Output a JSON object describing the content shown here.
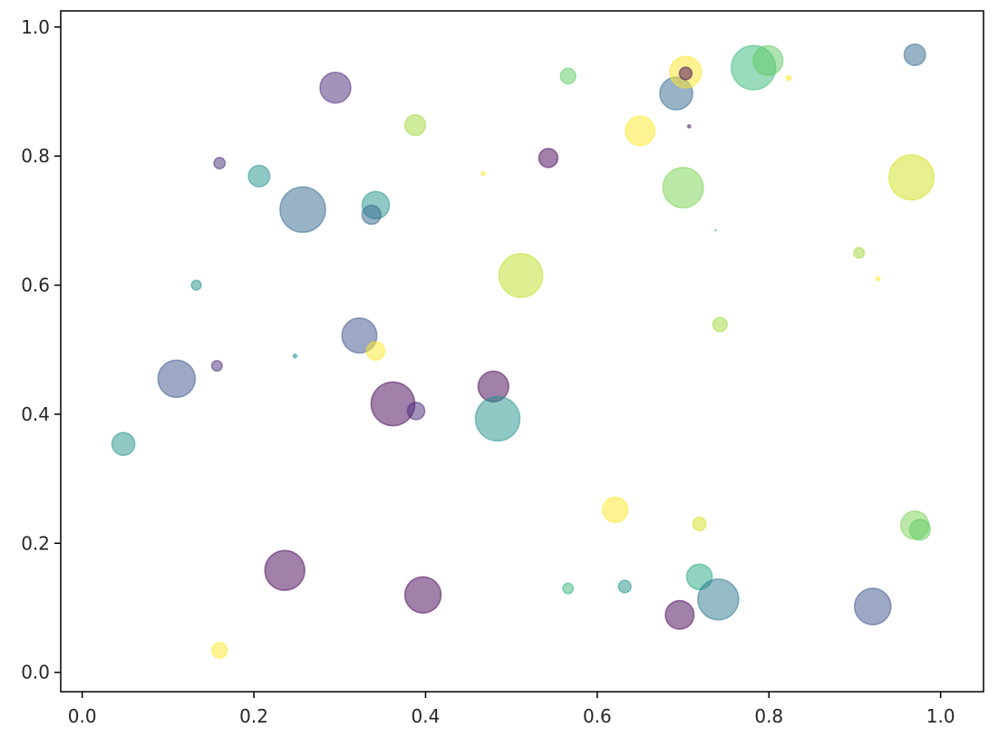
{
  "chart_data": {
    "type": "scatter",
    "title": "",
    "xlabel": "",
    "ylabel": "",
    "xlim": [
      -0.025,
      1.05
    ],
    "ylim": [
      -0.03,
      1.025
    ],
    "x_ticks": [
      {
        "value": 0.0,
        "label": "0.0"
      },
      {
        "value": 0.2,
        "label": "0.2"
      },
      {
        "value": 0.4,
        "label": "0.4"
      },
      {
        "value": 0.6,
        "label": "0.6"
      },
      {
        "value": 0.8,
        "label": "0.8"
      },
      {
        "value": 1.0,
        "label": "1.0"
      }
    ],
    "y_ticks": [
      {
        "value": 0.0,
        "label": "0.0"
      },
      {
        "value": 0.2,
        "label": "0.2"
      },
      {
        "value": 0.4,
        "label": "0.4"
      },
      {
        "value": 0.6,
        "label": "0.6"
      },
      {
        "value": 0.8,
        "label": "0.8"
      },
      {
        "value": 1.0,
        "label": "1.0"
      }
    ],
    "grid": false,
    "colormap": "viridis",
    "alpha": 0.5,
    "point_size_unit": "marker area in pt^2",
    "points": [
      {
        "x": 0.048,
        "y": 0.354,
        "size": 330,
        "color": "#21918c"
      },
      {
        "x": 0.11,
        "y": 0.455,
        "size": 880,
        "color": "#3b528b"
      },
      {
        "x": 0.133,
        "y": 0.6,
        "size": 60,
        "color": "#21918c"
      },
      {
        "x": 0.157,
        "y": 0.475,
        "size": 70,
        "color": "#472c7a"
      },
      {
        "x": 0.16,
        "y": 0.789,
        "size": 80,
        "color": "#472c7a"
      },
      {
        "x": 0.16,
        "y": 0.034,
        "size": 150,
        "color": "#fde725"
      },
      {
        "x": 0.206,
        "y": 0.769,
        "size": 290,
        "color": "#21918c"
      },
      {
        "x": 0.236,
        "y": 0.158,
        "size": 1000,
        "color": "#440154"
      },
      {
        "x": 0.248,
        "y": 0.49,
        "size": 8,
        "color": "#21918c"
      },
      {
        "x": 0.257,
        "y": 0.717,
        "size": 1300,
        "color": "#31688e"
      },
      {
        "x": 0.295,
        "y": 0.906,
        "size": 600,
        "color": "#482878"
      },
      {
        "x": 0.323,
        "y": 0.522,
        "size": 770,
        "color": "#3b528b"
      },
      {
        "x": 0.342,
        "y": 0.724,
        "size": 470,
        "color": "#21918c"
      },
      {
        "x": 0.342,
        "y": 0.498,
        "size": 210,
        "color": "#fde725"
      },
      {
        "x": 0.337,
        "y": 0.709,
        "size": 230,
        "color": "#31688e"
      },
      {
        "x": 0.362,
        "y": 0.416,
        "size": 1200,
        "color": "#440154"
      },
      {
        "x": 0.389,
        "y": 0.405,
        "size": 190,
        "color": "#482878"
      },
      {
        "x": 0.388,
        "y": 0.848,
        "size": 270,
        "color": "#a0da39"
      },
      {
        "x": 0.397,
        "y": 0.12,
        "size": 830,
        "color": "#440154"
      },
      {
        "x": 0.467,
        "y": 0.773,
        "size": 8,
        "color": "#fde725"
      },
      {
        "x": 0.479,
        "y": 0.443,
        "size": 590,
        "color": "#440154"
      },
      {
        "x": 0.484,
        "y": 0.393,
        "size": 1240,
        "color": "#21918c"
      },
      {
        "x": 0.511,
        "y": 0.615,
        "size": 1200,
        "color": "#bddf26"
      },
      {
        "x": 0.543,
        "y": 0.797,
        "size": 230,
        "color": "#440154"
      },
      {
        "x": 0.566,
        "y": 0.924,
        "size": 150,
        "color": "#5ec962"
      },
      {
        "x": 0.566,
        "y": 0.13,
        "size": 70,
        "color": "#35b779"
      },
      {
        "x": 0.621,
        "y": 0.252,
        "size": 400,
        "color": "#fde725"
      },
      {
        "x": 0.632,
        "y": 0.133,
        "size": 100,
        "color": "#21918c"
      },
      {
        "x": 0.65,
        "y": 0.839,
        "size": 540,
        "color": "#fde725"
      },
      {
        "x": 0.692,
        "y": 0.897,
        "size": 680,
        "color": "#31688e"
      },
      {
        "x": 0.696,
        "y": 0.089,
        "size": 520,
        "color": "#440154"
      },
      {
        "x": 0.7,
        "y": 0.751,
        "size": 1030,
        "color": "#7ad151"
      },
      {
        "x": 0.703,
        "y": 0.93,
        "size": 630,
        "color": "#fde725"
      },
      {
        "x": 0.703,
        "y": 0.928,
        "size": 100,
        "color": "#440154"
      },
      {
        "x": 0.707,
        "y": 0.846,
        "size": 6,
        "color": "#482878"
      },
      {
        "x": 0.719,
        "y": 0.23,
        "size": 110,
        "color": "#d2e21b"
      },
      {
        "x": 0.719,
        "y": 0.148,
        "size": 410,
        "color": "#22a884"
      },
      {
        "x": 0.738,
        "y": 0.685,
        "size": 1,
        "color": "#5ec962"
      },
      {
        "x": 0.741,
        "y": 0.113,
        "size": 1050,
        "color": "#2a788e"
      },
      {
        "x": 0.743,
        "y": 0.539,
        "size": 130,
        "color": "#a0da39"
      },
      {
        "x": 0.782,
        "y": 0.937,
        "size": 1230,
        "color": "#35b779"
      },
      {
        "x": 0.799,
        "y": 0.948,
        "size": 560,
        "color": "#5ec962"
      },
      {
        "x": 0.823,
        "y": 0.921,
        "size": 15,
        "color": "#fde725"
      },
      {
        "x": 0.905,
        "y": 0.65,
        "size": 70,
        "color": "#a0da39"
      },
      {
        "x": 0.921,
        "y": 0.102,
        "size": 840,
        "color": "#3b528b"
      },
      {
        "x": 0.927,
        "y": 0.61,
        "size": 8,
        "color": "#fde725"
      },
      {
        "x": 0.966,
        "y": 0.767,
        "size": 1270,
        "color": "#d2e21b"
      },
      {
        "x": 0.97,
        "y": 0.957,
        "size": 290,
        "color": "#31688e"
      },
      {
        "x": 0.97,
        "y": 0.228,
        "size": 500,
        "color": "#7ad151"
      },
      {
        "x": 0.976,
        "y": 0.221,
        "size": 270,
        "color": "#5ec962"
      }
    ]
  }
}
